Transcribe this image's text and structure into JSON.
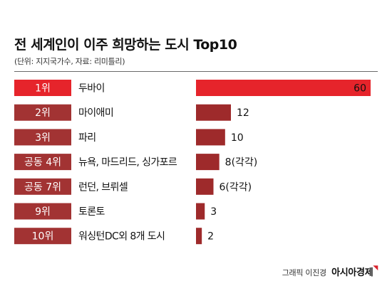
{
  "colors": {
    "highlight": "#e6242b",
    "bar": "#9e2a2b",
    "rank_box": "#a23333",
    "rank_text": "#ffffff",
    "text": "#111111"
  },
  "credit": {
    "text": "그래픽 이진경",
    "logo": "아시아경제"
  },
  "chart_data": {
    "type": "bar",
    "orientation": "horizontal",
    "title": "전 세계인이 이주 희망하는 도시 Top10",
    "note": "(단위: 지지국가수, 자료: 리미틀리)",
    "ranks": [
      "1위",
      "2위",
      "3위",
      "공동 4위",
      "공동 7위",
      "9위",
      "10위"
    ],
    "categories": [
      "두바이",
      "마이애미",
      "파리",
      "뉴욕, 마드리드, 싱가포르",
      "런던, 브뤼셀",
      "토론토",
      "워싱턴DC외 8개 도시"
    ],
    "values": [
      60,
      12,
      10,
      8,
      6,
      3,
      2
    ],
    "value_labels": [
      "60",
      "12",
      "10",
      "8(각각)",
      "6(각각)",
      "3",
      "2"
    ],
    "highlight_index": 0,
    "xlim": [
      0,
      60
    ],
    "grid": false,
    "legend": "none"
  }
}
